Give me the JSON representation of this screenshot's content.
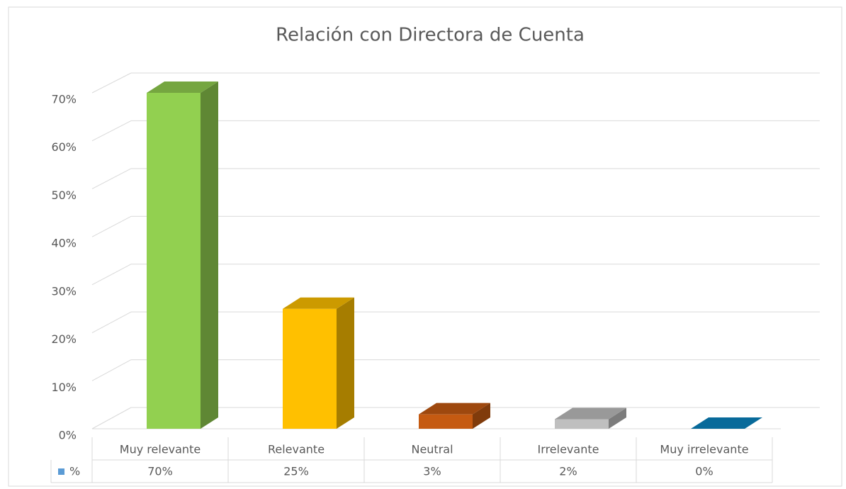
{
  "chart_data": {
    "type": "bar3d",
    "title": "Relación con Directora de Cuenta",
    "categories": [
      "Muy relevante",
      "Relevante",
      "Neutral",
      "Irrelevante",
      "Muy irrelevante"
    ],
    "series": [
      {
        "name": "%",
        "legend_color": "#5b9bd5",
        "colors": [
          "#92d050",
          "#ffc000",
          "#c55a11",
          "#bfbfbf",
          "#0a85c0"
        ],
        "values": [
          70,
          25,
          3,
          2,
          0
        ],
        "value_labels": [
          "70%",
          "25%",
          "3%",
          "2%",
          "0%"
        ]
      }
    ],
    "ylim": [
      0,
      70
    ],
    "yticks": [
      {
        "value": 0,
        "label": "0%"
      },
      {
        "value": 10,
        "label": "10%"
      },
      {
        "value": 20,
        "label": "20%"
      },
      {
        "value": 30,
        "label": "30%"
      },
      {
        "value": 40,
        "label": "40%"
      },
      {
        "value": 50,
        "label": "50%"
      },
      {
        "value": 60,
        "label": "60%"
      },
      {
        "value": 70,
        "label": "70%"
      }
    ],
    "grid": true
  }
}
